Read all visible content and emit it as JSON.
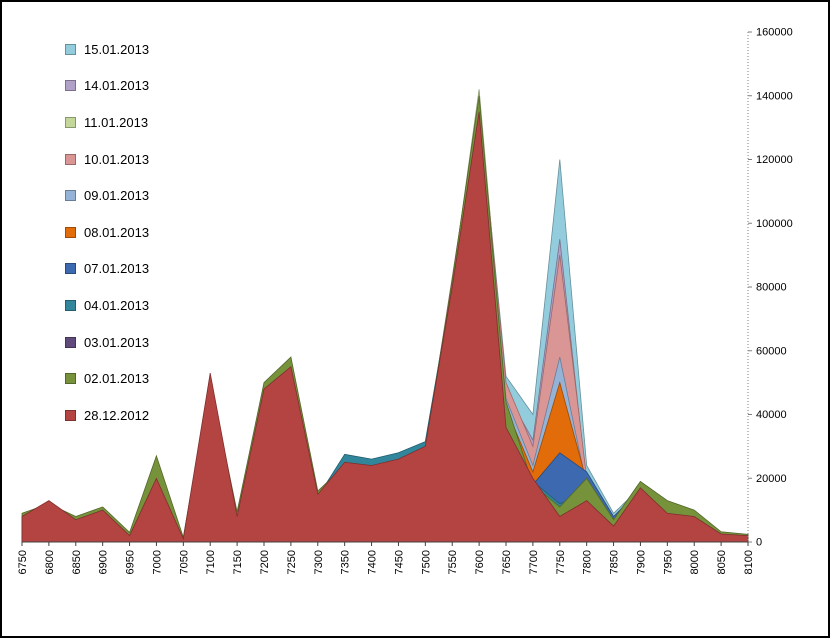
{
  "chart_data": {
    "type": "area",
    "overlap": true,
    "title": "",
    "xlabel": "",
    "ylabel": "",
    "grid": false,
    "legend_position": "top-left",
    "x_categories": [
      6750,
      6800,
      6850,
      6900,
      6950,
      7000,
      7050,
      7100,
      7150,
      7200,
      7250,
      7300,
      7350,
      7400,
      7450,
      7500,
      7550,
      7600,
      7650,
      7700,
      7750,
      7800,
      7850,
      7900,
      7950,
      8000,
      8050,
      8100
    ],
    "y_axis": {
      "side": "right",
      "min": 0,
      "max": 160000,
      "step": 20000,
      "tick_labels": [
        "0",
        "20000",
        "40000",
        "60000",
        "80000",
        "100000",
        "120000",
        "140000",
        "160000"
      ]
    },
    "series": [
      {
        "name": "15.01.2013",
        "color": "#93CDDD",
        "values": [
          6800,
          10600,
          5800,
          7800,
          1100,
          14500,
          760,
          45500,
          6800,
          41500,
          48500,
          12600,
          23200,
          22200,
          24200,
          28200,
          80200,
          137400,
          52000,
          40000,
          120000,
          24000,
          9000,
          17100,
          10400,
          9000,
          2798,
          2198
        ]
      },
      {
        "name": "14.01.2013",
        "color": "#B1A0C7",
        "values": [
          6900,
          10800,
          5900,
          8000,
          1200,
          15000,
          780,
          46000,
          6900,
          42000,
          49000,
          12800,
          23400,
          22400,
          24400,
          28400,
          80000,
          137200,
          47000,
          32000,
          95000,
          18000,
          7100,
          17000,
          10300,
          8900,
          2795,
          2195
        ]
      },
      {
        "name": "11.01.2013",
        "color": "#C4D79B",
        "values": [
          7000,
          11000,
          6000,
          8200,
          1300,
          15500,
          800,
          46500,
          7000,
          42500,
          49500,
          13000,
          23600,
          22600,
          24600,
          28600,
          81000,
          142000,
          46000,
          28000,
          85000,
          17000,
          6900,
          16900,
          10200,
          8800,
          2790,
          2190
        ]
      },
      {
        "name": "10.01.2013",
        "color": "#DA9694",
        "values": [
          7100,
          11200,
          6100,
          8400,
          1400,
          16000,
          820,
          47000,
          7100,
          43000,
          50000,
          13200,
          23800,
          22800,
          24800,
          28800,
          83000,
          137500,
          50000,
          30000,
          90000,
          20000,
          6800,
          16800,
          10100,
          8700,
          2780,
          2180
        ]
      },
      {
        "name": "09.01.2013",
        "color": "#95B3D7",
        "values": [
          7200,
          11400,
          6200,
          8600,
          1500,
          16500,
          840,
          47500,
          7200,
          43500,
          50500,
          13400,
          24000,
          23000,
          25000,
          29000,
          79000,
          136600,
          45000,
          24000,
          58000,
          17500,
          6700,
          16700,
          10000,
          8600,
          2770,
          2170
        ]
      },
      {
        "name": "08.01.2013",
        "color": "#E26B0A",
        "values": [
          7300,
          11600,
          6300,
          8800,
          1600,
          17000,
          860,
          48000,
          7300,
          44000,
          51000,
          13600,
          24200,
          23200,
          25200,
          29200,
          79200,
          136400,
          42000,
          22000,
          50000,
          19000,
          6600,
          16600,
          9900,
          8500,
          2760,
          2160
        ]
      },
      {
        "name": "07.01.2013",
        "color": "#3C69B0",
        "values": [
          7400,
          11800,
          6400,
          9000,
          1700,
          17500,
          880,
          48500,
          7400,
          44500,
          51500,
          13800,
          24500,
          23500,
          25500,
          29500,
          79500,
          136200,
          40000,
          18000,
          28000,
          22000,
          8000,
          16500,
          9800,
          8400,
          2750,
          2150
        ]
      },
      {
        "name": "04.01.2013",
        "color": "#31869B",
        "values": [
          7600,
          12200,
          6600,
          9400,
          1900,
          18500,
          950,
          49500,
          7600,
          45500,
          52500,
          14200,
          27500,
          26000,
          28000,
          31500,
          80500,
          137000,
          38000,
          19000,
          12000,
          15000,
          6300,
          16300,
          11000,
          9000,
          2800,
          2200
        ]
      },
      {
        "name": "03.01.2013",
        "color": "#604A7B",
        "values": [
          7500,
          12000,
          6500,
          9200,
          1800,
          18000,
          900,
          49000,
          7500,
          45000,
          52000,
          14000,
          23000,
          22000,
          24000,
          28000,
          79000,
          136000,
          39000,
          17000,
          10000,
          14000,
          6000,
          16000,
          9500,
          8300,
          2700,
          2100
        ]
      },
      {
        "name": "02.01.2013",
        "color": "#76933C",
        "values": [
          9000,
          12000,
          8000,
          11000,
          3000,
          27000,
          1500,
          50000,
          9500,
          50000,
          58000,
          16000,
          24000,
          23000,
          25000,
          29000,
          82000,
          140000,
          44000,
          18000,
          11000,
          20000,
          7000,
          19000,
          13000,
          10000,
          3200,
          2400
        ]
      },
      {
        "name": "28.12.2012",
        "color": "#B34441",
        "values": [
          8000,
          13000,
          7000,
          10000,
          2000,
          20000,
          1000,
          53000,
          8000,
          48000,
          55000,
          15000,
          25000,
          24000,
          26000,
          30000,
          80000,
          135000,
          36000,
          20000,
          8000,
          13000,
          5000,
          17000,
          9000,
          8000,
          2500,
          2000
        ]
      }
    ]
  },
  "axis_colors": {
    "x_axis_line": "#404040",
    "y_axis_line": "#808080",
    "label_color": "#000000"
  }
}
